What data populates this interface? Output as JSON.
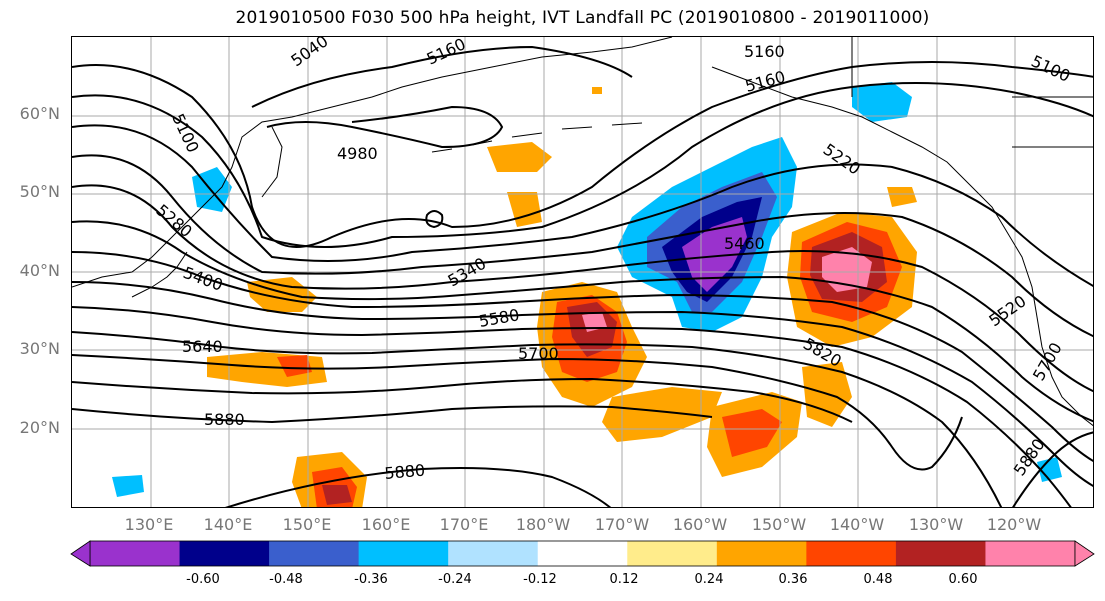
{
  "title": "2019010500 F030 500 hPa height, IVT Landfall PC (2019010800 - 2019011000)",
  "lat_labels": [
    "60°N",
    "50°N",
    "40°N",
    "30°N",
    "20°N"
  ],
  "lon_labels": [
    "130°E",
    "140°E",
    "150°E",
    "160°E",
    "170°E",
    "180°W",
    "170°W",
    "160°W",
    "150°W",
    "140°W",
    "130°W",
    "120°W"
  ],
  "contour_labels": [
    "5040",
    "5160",
    "5160",
    "5160",
    "5100",
    "5100",
    "4980",
    "5220",
    "5280",
    "5400",
    "5460",
    "5340",
    "5520",
    "5580",
    "5640",
    "5700",
    "5820",
    "5700",
    "5880",
    "5880",
    "5880"
  ],
  "colorbar": {
    "ticks": [
      "-0.60",
      "-0.48",
      "-0.36",
      "-0.24",
      "-0.12",
      "0.12",
      "0.24",
      "0.36",
      "0.48",
      "0.60"
    ],
    "colors": [
      "#9a32cd",
      "#00008b",
      "#3a5fcd",
      "#00bfff",
      "#b0e2ff",
      "#ffffff",
      "#ffec8b",
      "#ffa500",
      "#ff4500",
      "#b22222",
      "#ff82ab",
      "#ff82ab"
    ]
  }
}
